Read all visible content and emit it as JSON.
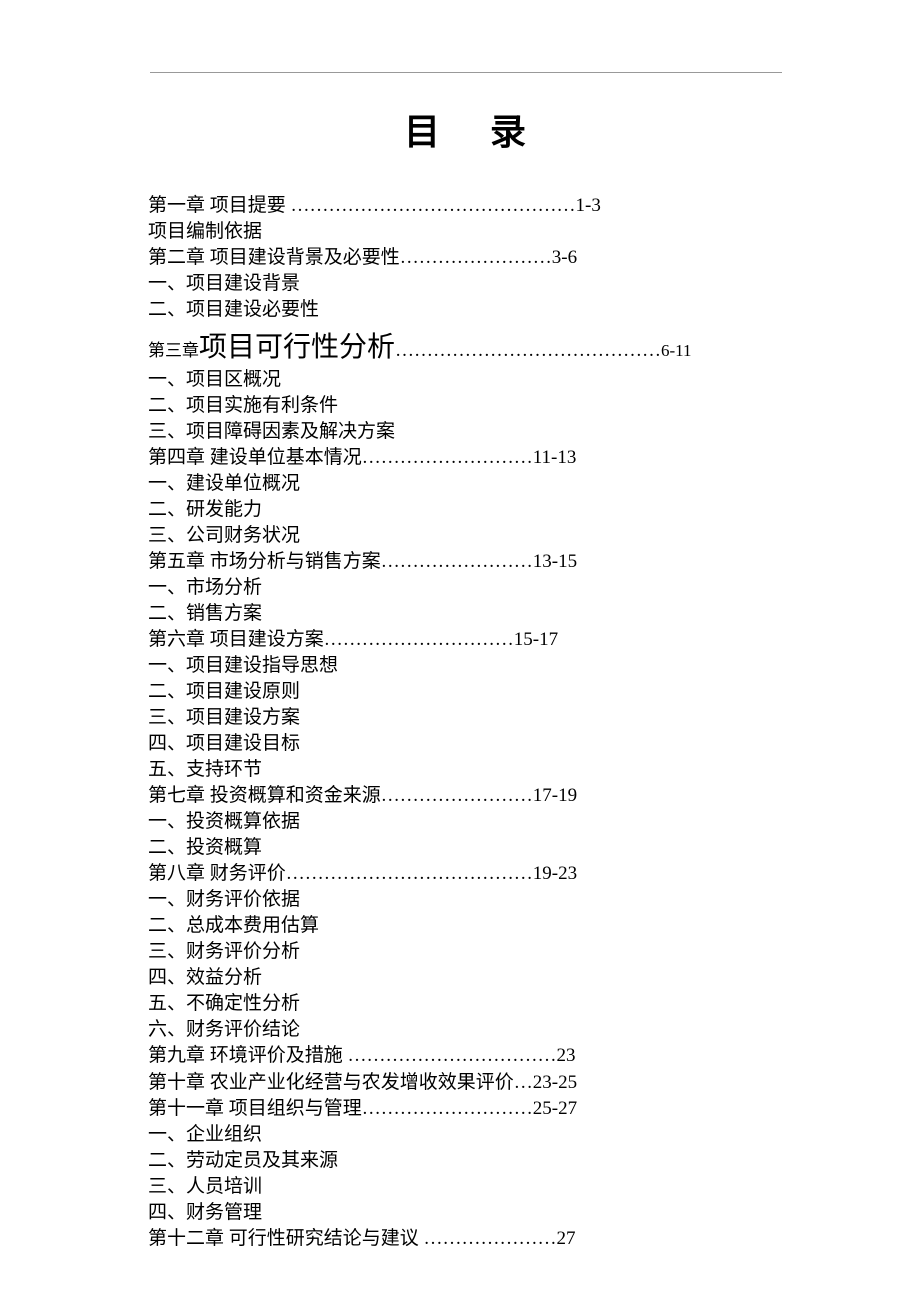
{
  "title": "目录",
  "entries": [
    {
      "type": "chapter",
      "text": "第一章  项目提要 ………………………………………1-3"
    },
    {
      "type": "sub",
      "text": "项目编制依据"
    },
    {
      "type": "chapter",
      "text": "第二章  项目建设背景及必要性……………………3-6"
    },
    {
      "type": "sub",
      "text": "一、项目建设背景"
    },
    {
      "type": "sub",
      "text": "二、项目建设必要性"
    },
    {
      "type": "featured",
      "prefix": "第三章 ",
      "big": "项目可行性分析",
      "dots": "……………………………………",
      "page": "6-11"
    },
    {
      "type": "sub",
      "text": "一、项目区概况"
    },
    {
      "type": "sub",
      "text": "二、项目实施有利条件"
    },
    {
      "type": "sub",
      "text": "三、项目障碍因素及解决方案"
    },
    {
      "type": "chapter",
      "text": "第四章  建设单位基本情况………………………11-13"
    },
    {
      "type": "sub",
      "text": "一、建设单位概况"
    },
    {
      "type": "sub",
      "text": "二、研发能力"
    },
    {
      "type": "sub",
      "text": "三、公司财务状况"
    },
    {
      "type": "chapter",
      "text": "第五章  市场分析与销售方案……………………13-15"
    },
    {
      "type": "sub",
      "text": "一、市场分析"
    },
    {
      "type": "sub",
      "text": "二、销售方案"
    },
    {
      "type": "chapter",
      "text": "第六章  项目建设方案…………………………15-17"
    },
    {
      "type": "sub",
      "text": "一、项目建设指导思想"
    },
    {
      "type": "sub",
      "text": "二、项目建设原则"
    },
    {
      "type": "sub",
      "text": "三、项目建设方案"
    },
    {
      "type": "sub",
      "text": "四、项目建设目标"
    },
    {
      "type": "sub",
      "text": "五、支持环节"
    },
    {
      "type": "chapter",
      "text": "第七章  投资概算和资金来源……………………17-19"
    },
    {
      "type": "sub",
      "text": "一、投资概算依据"
    },
    {
      "type": "sub",
      "text": "二、投资概算"
    },
    {
      "type": "chapter",
      "text": "第八章  财务评价…………………………………19-23"
    },
    {
      "type": "sub",
      "text": "一、财务评价依据"
    },
    {
      "type": "sub",
      "text": "二、总成本费用估算"
    },
    {
      "type": "sub",
      "text": "三、财务评价分析"
    },
    {
      "type": "sub",
      "text": "四、效益分析"
    },
    {
      "type": "sub",
      "text": "五、不确定性分析"
    },
    {
      "type": "sub",
      "text": "六、财务评价结论"
    },
    {
      "type": "chapter",
      "text": "第九章  环境评价及措施 ……………………………23"
    },
    {
      "type": "chapter",
      "text": "第十章 农业产业化经营与农发增收效果评价…23-25"
    },
    {
      "type": "chapter",
      "text": "第十一章  项目组织与管理………………………25-27"
    },
    {
      "type": "sub",
      "text": "一、企业组织"
    },
    {
      "type": "sub",
      "text": "二、劳动定员及其来源"
    },
    {
      "type": "sub",
      "text": "三、人员培训"
    },
    {
      "type": "sub",
      "text": "四、财务管理"
    },
    {
      "type": "chapter",
      "text": "第十二章  可行性研究结论与建议 …………………27"
    }
  ],
  "styles": {
    "body_font_size": 19,
    "title_font_size": 36,
    "featured_font_size": 28,
    "background_color": "#ffffff",
    "text_color": "#000000",
    "line_color": "#999999"
  }
}
